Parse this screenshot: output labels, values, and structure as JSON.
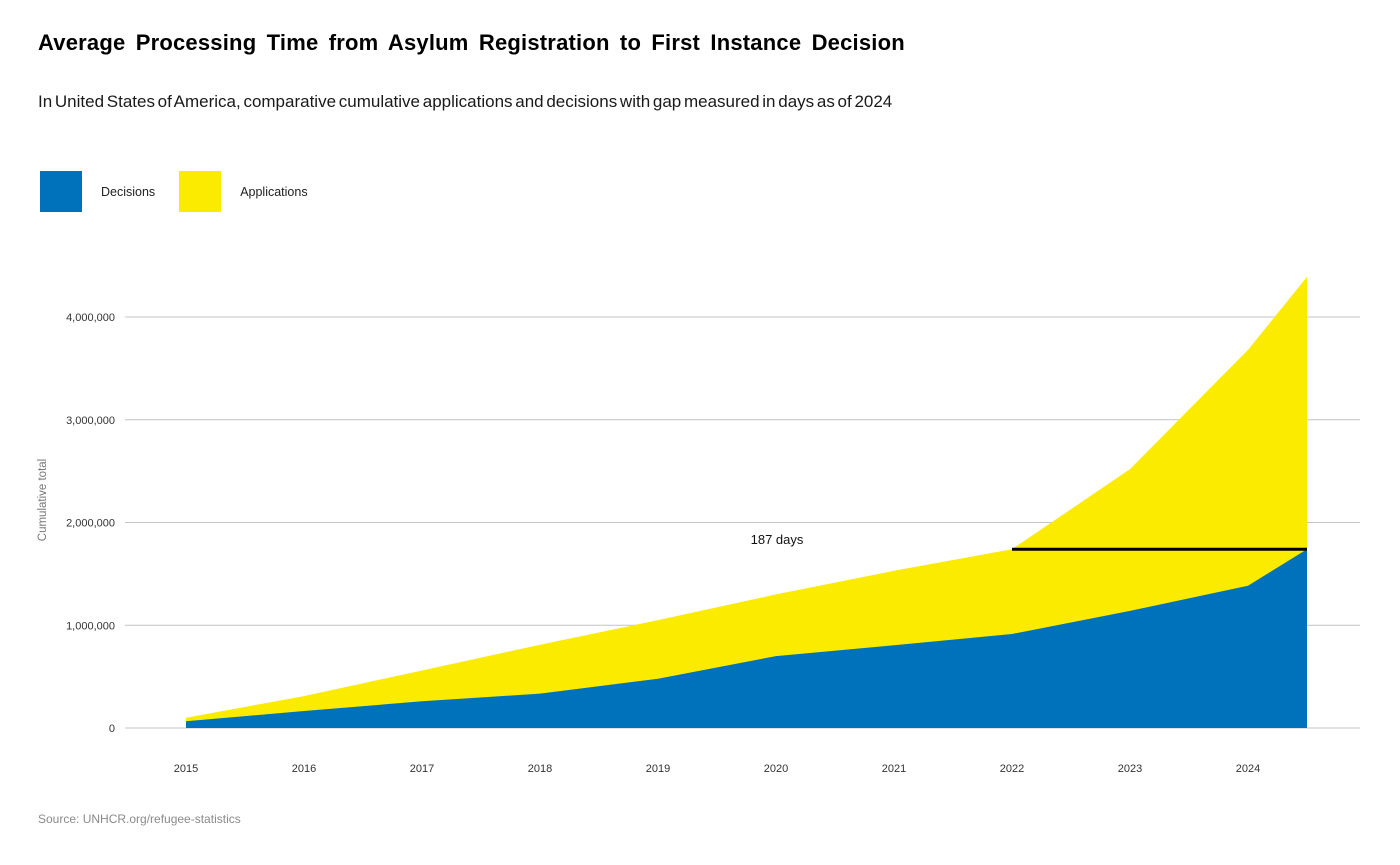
{
  "header": {
    "title": "Average Processing Time from Asylum Registration to First Instance Decision",
    "subtitle": "In United States of America, comparative cumulative applications and decisions with gap measured in days as of 2024"
  },
  "legend": {
    "items": [
      {
        "label": "Decisions",
        "color": "#0072BC"
      },
      {
        "label": "Applications",
        "color": "#FAEB00"
      }
    ]
  },
  "chart_data": {
    "type": "area",
    "title": "Average Processing Time from Asylum Registration to First Instance Decision",
    "subtitle": "In United States of America, comparative cumulative applications and decisions with gap measured in days as of 2024",
    "x": [
      2015,
      2016,
      2017,
      2018,
      2019,
      2020,
      2021,
      2022,
      2023,
      2024,
      2024.5
    ],
    "series": [
      {
        "name": "Applications",
        "color": "#FAEB00",
        "values": [
          100000,
          310000,
          560000,
          810000,
          1050000,
          1300000,
          1530000,
          1740000,
          2520000,
          3680000,
          4390000
        ]
      },
      {
        "name": "Decisions",
        "color": "#0072BC",
        "values": [
          65000,
          165000,
          260000,
          335000,
          480000,
          700000,
          805000,
          915000,
          1140000,
          1385000,
          1740000
        ]
      }
    ],
    "xlabel": "",
    "ylabel": "Cumulative total",
    "ylim": [
      0,
      4450000
    ],
    "xlim": [
      2014.5,
      2025
    ],
    "yticks": [
      0,
      1000000,
      2000000,
      3000000,
      4000000
    ],
    "ytick_labels": [
      "0",
      "1,000,000",
      "2,000,000",
      "3,000,000",
      "4,000,000"
    ],
    "xtick_labels": [
      "2015",
      "2016",
      "2017",
      "2018",
      "2019",
      "2020",
      "2021",
      "2022",
      "2023",
      "2024"
    ],
    "grid": true,
    "legend_position": "top-left",
    "annotation": {
      "label": "187 days",
      "y": 1740000,
      "x_start": 2022,
      "x_end": 2024.5
    }
  },
  "footer": {
    "source": "Source: UNHCR.org/refugee-statistics"
  }
}
